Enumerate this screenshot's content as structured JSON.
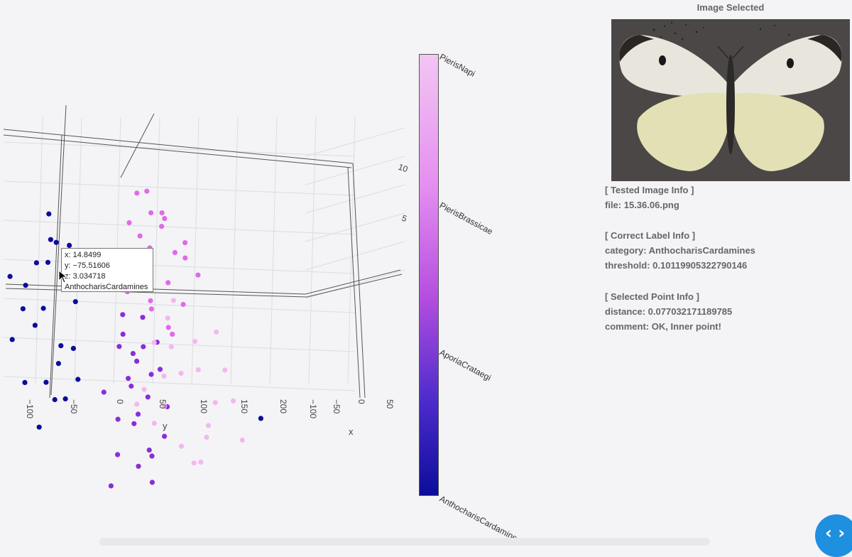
{
  "chart_data": {
    "type": "scatter",
    "categories": [
      "AnthocharisCardamines",
      "AporiaCrataegi",
      "PierisBrassicae",
      "PierisNapi"
    ],
    "colorbar_labels": [
      "PierisNapi",
      "PierisBrassicae",
      "AporiaCrataegi",
      "AnthocharisCardamines"
    ],
    "colors": {
      "AnthocharisCardamines": "#0c0c9c",
      "AporiaCrataegi": "#8a2ed8",
      "PierisBrassicae": "#e06ae8",
      "PierisNapi": "#f2b8f0"
    },
    "axis_titles": {
      "x": "x",
      "y": "y"
    },
    "y_ticks": [
      "−100",
      "−50",
      "0",
      "50",
      "100",
      "150",
      "200"
    ],
    "x_ticks": [
      "−100",
      "−50",
      "0",
      "50"
    ],
    "z_ticks": [
      "10",
      "5"
    ],
    "points": [
      {
        "c": 0,
        "x": -88,
        "y": -65,
        "z": 55
      },
      {
        "c": 0,
        "x": -72,
        "y": -60,
        "z": 40
      },
      {
        "c": 0,
        "x": -55,
        "y": -75,
        "z": 30
      },
      {
        "c": 0,
        "x": -90,
        "y": -80,
        "z": 20
      },
      {
        "c": 0,
        "x": -70,
        "y": -50,
        "z": 10
      },
      {
        "c": 0,
        "x": -85,
        "y": -95,
        "z": 5
      },
      {
        "c": 0,
        "x": -60,
        "y": -105,
        "z": -5
      },
      {
        "c": 0,
        "x": -95,
        "y": -70,
        "z": -12
      },
      {
        "c": 0,
        "x": -78,
        "y": -85,
        "z": -20
      },
      {
        "c": 0,
        "x": -50,
        "y": -60,
        "z": -25
      },
      {
        "c": 0,
        "x": -66,
        "y": -40,
        "z": -30
      },
      {
        "c": 0,
        "x": -92,
        "y": -110,
        "z": -35
      },
      {
        "c": 0,
        "x": -80,
        "y": -55,
        "z": -45
      },
      {
        "c": 0,
        "x": -45,
        "y": -80,
        "z": -50
      },
      {
        "c": 0,
        "x": -70,
        "y": -100,
        "z": -58
      },
      {
        "c": 0,
        "x": -60,
        "y": -65,
        "z": -65
      },
      {
        "c": 0,
        "x": -85,
        "y": -45,
        "z": -70
      },
      {
        "c": 0,
        "x": -40,
        "y": -90,
        "z": -80
      },
      {
        "c": 0,
        "x": -75,
        "y": -35,
        "z": 0
      },
      {
        "c": 0,
        "x": -65,
        "y": -120,
        "z": 15
      },
      {
        "c": 0,
        "x": 30,
        "y": 170,
        "z": -40
      },
      {
        "c": 0,
        "x": -55,
        "y": -25,
        "z": 25
      },
      {
        "c": 0,
        "x": -82,
        "y": -30,
        "z": -55
      },
      {
        "c": 0,
        "x": -48,
        "y": -50,
        "z": 45
      },
      {
        "c": 0,
        "x": -98,
        "y": -60,
        "z": 35
      },
      {
        "c": 1,
        "x": -20,
        "y": 10,
        "z": -5
      },
      {
        "c": 1,
        "x": -10,
        "y": 20,
        "z": -15
      },
      {
        "c": 1,
        "x": -30,
        "y": 30,
        "z": -25
      },
      {
        "c": 1,
        "x": 0,
        "y": 15,
        "z": -35
      },
      {
        "c": 1,
        "x": -15,
        "y": 40,
        "z": -45
      },
      {
        "c": 1,
        "x": -5,
        "y": 25,
        "z": -55
      },
      {
        "c": 1,
        "x": -25,
        "y": 5,
        "z": -65
      },
      {
        "c": 1,
        "x": 10,
        "y": 35,
        "z": -75
      },
      {
        "c": 1,
        "x": -35,
        "y": -10,
        "z": -50
      },
      {
        "c": 1,
        "x": -18,
        "y": 45,
        "z": -30
      },
      {
        "c": 1,
        "x": 5,
        "y": 50,
        "z": -20
      },
      {
        "c": 1,
        "x": -28,
        "y": 55,
        "z": -10
      },
      {
        "c": 1,
        "x": -8,
        "y": 0,
        "z": -85
      },
      {
        "c": 1,
        "x": -22,
        "y": 30,
        "z": -95
      },
      {
        "c": 1,
        "x": 2,
        "y": 18,
        "z": -60
      },
      {
        "c": 1,
        "x": -40,
        "y": 22,
        "z": -40
      },
      {
        "c": 1,
        "x": -12,
        "y": 60,
        "z": -70
      },
      {
        "c": 1,
        "x": -32,
        "y": 38,
        "z": 5
      },
      {
        "c": 1,
        "x": -2,
        "y": 42,
        "z": -100
      },
      {
        "c": 1,
        "x": -20,
        "y": -5,
        "z": -110
      },
      {
        "c": 1,
        "x": -45,
        "y": 12,
        "z": -20
      },
      {
        "c": 1,
        "x": 8,
        "y": 28,
        "z": -5
      },
      {
        "c": 1,
        "x": -14,
        "y": 8,
        "z": 10
      },
      {
        "c": 1,
        "x": -26,
        "y": 48,
        "z": -88
      },
      {
        "c": 1,
        "x": -6,
        "y": 62,
        "z": -48
      },
      {
        "c": 2,
        "x": -20,
        "y": 40,
        "z": 95
      },
      {
        "c": 2,
        "x": -5,
        "y": 55,
        "z": 85
      },
      {
        "c": 2,
        "x": -30,
        "y": 65,
        "z": 75
      },
      {
        "c": 2,
        "x": 10,
        "y": 80,
        "z": 70
      },
      {
        "c": 2,
        "x": -15,
        "y": 30,
        "z": 65
      },
      {
        "c": 2,
        "x": 0,
        "y": 70,
        "z": 60
      },
      {
        "c": 2,
        "x": -25,
        "y": 45,
        "z": 55
      },
      {
        "c": 2,
        "x": 15,
        "y": 95,
        "z": 50
      },
      {
        "c": 2,
        "x": -10,
        "y": 25,
        "z": 45
      },
      {
        "c": 2,
        "x": 5,
        "y": 60,
        "z": 40
      },
      {
        "c": 2,
        "x": -35,
        "y": 35,
        "z": 35
      },
      {
        "c": 2,
        "x": 20,
        "y": 75,
        "z": 30
      },
      {
        "c": 2,
        "x": -18,
        "y": 15,
        "z": 25
      },
      {
        "c": 2,
        "x": 12,
        "y": 50,
        "z": 80
      },
      {
        "c": 2,
        "x": -8,
        "y": 85,
        "z": 55
      },
      {
        "c": 2,
        "x": -28,
        "y": 20,
        "z": 70
      },
      {
        "c": 2,
        "x": 2,
        "y": 40,
        "z": 20
      },
      {
        "c": 2,
        "x": 25,
        "y": 60,
        "z": 10
      },
      {
        "c": 2,
        "x": -40,
        "y": 50,
        "z": 15
      },
      {
        "c": 2,
        "x": 8,
        "y": 20,
        "z": 100
      },
      {
        "c": 2,
        "x": -12,
        "y": 65,
        "z": 5
      },
      {
        "c": 2,
        "x": 18,
        "y": 35,
        "z": 90
      },
      {
        "c": 3,
        "x": 20,
        "y": 60,
        "z": 0
      },
      {
        "c": 3,
        "x": 35,
        "y": 90,
        "z": -10
      },
      {
        "c": 3,
        "x": 10,
        "y": 75,
        "z": -20
      },
      {
        "c": 3,
        "x": 40,
        "y": 110,
        "z": -30
      },
      {
        "c": 3,
        "x": 25,
        "y": 50,
        "z": -40
      },
      {
        "c": 3,
        "x": 50,
        "y": 130,
        "z": -25
      },
      {
        "c": 3,
        "x": 15,
        "y": 40,
        "z": -55
      },
      {
        "c": 3,
        "x": 45,
        "y": 100,
        "z": -45
      },
      {
        "c": 3,
        "x": 30,
        "y": 70,
        "z": -65
      },
      {
        "c": 3,
        "x": 55,
        "y": 140,
        "z": -50
      },
      {
        "c": 3,
        "x": 5,
        "y": 30,
        "z": -35
      },
      {
        "c": 3,
        "x": 38,
        "y": 85,
        "z": 10
      },
      {
        "c": 3,
        "x": 22,
        "y": 55,
        "z": 20
      },
      {
        "c": 3,
        "x": 48,
        "y": 120,
        "z": -5
      },
      {
        "c": 3,
        "x": 12,
        "y": 65,
        "z": 30
      },
      {
        "c": 3,
        "x": 28,
        "y": 95,
        "z": -75
      },
      {
        "c": 3,
        "x": 42,
        "y": 45,
        "z": -15
      },
      {
        "c": 3,
        "x": 18,
        "y": 105,
        "z": -60
      },
      {
        "c": 3,
        "x": 33,
        "y": 35,
        "z": 5
      },
      {
        "c": 3,
        "x": 52,
        "y": 80,
        "z": -70
      },
      {
        "c": 3,
        "x": 8,
        "y": 20,
        "z": -45
      },
      {
        "c": 3,
        "x": 26,
        "y": 115,
        "z": 15
      }
    ]
  },
  "tooltip": {
    "x_line": "x: 14.8499",
    "y_line": "y: −75.51606",
    "z_line": "z: 3.034718",
    "category": "AnthocharisCardamines"
  },
  "side": {
    "image_title": "Image Selected",
    "tested_header": "[ Tested Image Info ]",
    "file": "file: 15.36.06.png",
    "correct_header": "[ Correct Label Info ]",
    "category": "category: AnthocharisCardamines",
    "threshold": "threshold: 0.10119905322790146",
    "selected_header": "[ Selected Point Info ]",
    "distance": "distance: 0.077032171189785",
    "comment": "comment: OK, Inner point!"
  },
  "code_icon": "code-brackets-icon",
  "code_button_glyph": "‹ ›"
}
